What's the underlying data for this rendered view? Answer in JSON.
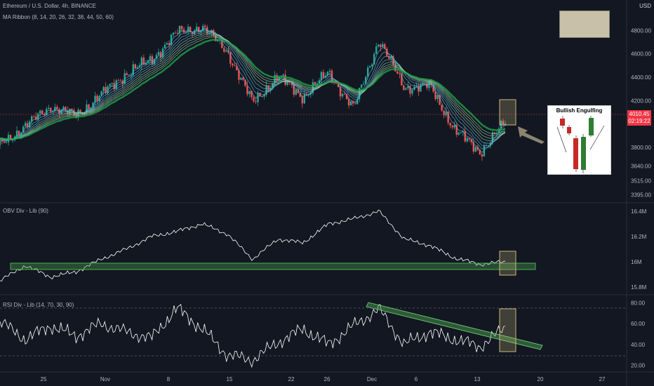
{
  "header": {
    "symbol_line": "Ethereum / U.S. Dollar, 4h, BINANCE",
    "indicator_line": "MA Ribbon (8, 14, 20, 26, 32, 38, 44, 50, 60)",
    "currency": "USD",
    "obv_label": "OBV Div - Lib (90)",
    "rsi_label": "RSI Div - Lib (14, 70, 30, 90)"
  },
  "price_tag": {
    "price": "4010.45",
    "countdown": "02:19:22"
  },
  "inset": {
    "title": "Bullish Engulfing"
  },
  "colors": {
    "background": "#131722",
    "up": "#26a69a",
    "down": "#ef5350",
    "ribbon_slow": "#1fa34a",
    "obv_zone": "#4caf50",
    "highlight_box": "#c8b97a"
  },
  "chart_data": [
    {
      "type": "line",
      "panel": "price",
      "ylim": [
        3350,
        5000
      ],
      "yticks": [
        "4800.00",
        "4600.00",
        "4400.00",
        "4200.00",
        "3800.00",
        "3640.00",
        "3515.00",
        "3395.00"
      ],
      "ytick_values": [
        4800,
        4600,
        4400,
        4200,
        3800,
        3640,
        3515,
        3395
      ],
      "x": [
        0,
        5,
        10,
        15,
        20,
        25,
        30,
        35,
        40,
        45,
        50,
        55,
        60,
        65,
        70,
        75,
        80,
        85,
        90,
        95,
        100
      ],
      "values": [
        3820,
        3980,
        4150,
        4070,
        4250,
        4430,
        4550,
        4780,
        4830,
        4620,
        4180,
        4410,
        4230,
        4440,
        4130,
        4720,
        4310,
        4330,
        3950,
        3760,
        4010
      ],
      "x_ticks": [
        "25",
        "Nov",
        "8",
        "15",
        "22",
        "26",
        "Dec",
        "6",
        "13",
        "20",
        "27"
      ]
    },
    {
      "type": "line",
      "panel": "obv",
      "ylim": [
        15.75,
        16.45
      ],
      "yticks": [
        "16.4M",
        "16.2M",
        "16M",
        "15.8M"
      ],
      "ytick_values": [
        16.4,
        16.2,
        16.0,
        15.8
      ],
      "x": [
        0,
        5,
        10,
        15,
        20,
        25,
        30,
        35,
        40,
        45,
        50,
        55,
        60,
        65,
        70,
        75,
        80,
        85,
        90,
        95,
        100
      ],
      "values": [
        15.85,
        15.97,
        15.88,
        15.92,
        16.02,
        16.1,
        16.2,
        16.24,
        16.3,
        16.22,
        16.02,
        16.18,
        16.15,
        16.3,
        16.34,
        16.4,
        16.18,
        16.13,
        16.03,
        15.98,
        16.0
      ]
    },
    {
      "type": "line",
      "panel": "rsi",
      "ylim": [
        15,
        85
      ],
      "yticks": [
        "80.00",
        "60.00",
        "40.00",
        "20.00"
      ],
      "ytick_values": [
        80,
        60,
        40,
        20
      ],
      "x": [
        0,
        5,
        10,
        15,
        20,
        25,
        30,
        35,
        40,
        45,
        50,
        55,
        60,
        65,
        70,
        75,
        80,
        85,
        90,
        95,
        100
      ],
      "values": [
        62,
        45,
        58,
        48,
        60,
        52,
        46,
        75,
        55,
        30,
        25,
        42,
        55,
        40,
        58,
        74,
        40,
        52,
        45,
        38,
        56
      ]
    }
  ]
}
